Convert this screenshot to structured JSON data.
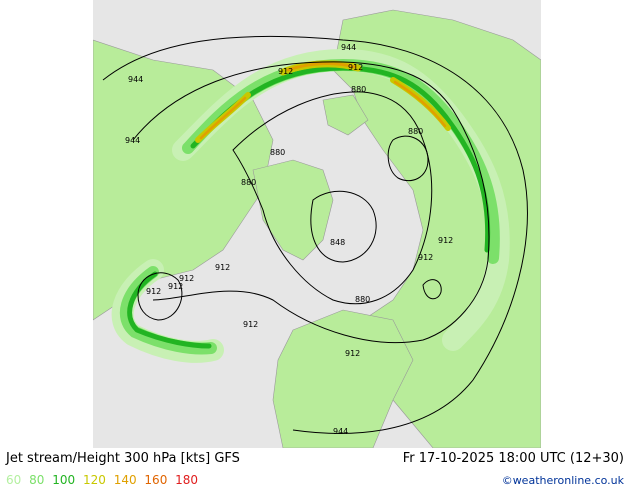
{
  "title": {
    "left": "Jet stream/Height 300 hPa [kts] GFS",
    "right": "Fr 17-10-2025 18:00 UTC (12+30)"
  },
  "legend": {
    "values": [
      {
        "label": "60",
        "color": "#b4f0a0"
      },
      {
        "label": "80",
        "color": "#7ce06a"
      },
      {
        "label": "100",
        "color": "#22b422"
      },
      {
        "label": "120",
        "color": "#c8c800"
      },
      {
        "label": "140",
        "color": "#e0a000"
      },
      {
        "label": "160",
        "color": "#e06400"
      },
      {
        "label": "180",
        "color": "#e01e1e"
      }
    ]
  },
  "credit": "©weatheronline.co.uk",
  "contour_labels": [
    {
      "text": "944"
    },
    {
      "text": "944"
    },
    {
      "text": "944"
    },
    {
      "text": "912"
    },
    {
      "text": "912"
    },
    {
      "text": "880"
    },
    {
      "text": "880"
    },
    {
      "text": "880"
    },
    {
      "text": "880"
    },
    {
      "text": "848"
    },
    {
      "text": "912"
    },
    {
      "text": "912"
    },
    {
      "text": "912"
    },
    {
      "text": "912"
    },
    {
      "text": "912"
    },
    {
      "text": "912"
    },
    {
      "text": "880"
    },
    {
      "text": "912"
    },
    {
      "text": "912"
    },
    {
      "text": "944"
    }
  ],
  "colors": {
    "ocean": "#e6e6e6",
    "land": "#b8ec9a",
    "border": "#a0a0a0",
    "jet_60": "#c8f0b4",
    "jet_80": "#7ce06a",
    "jet_100": "#22b422",
    "jet_120": "#c8c800",
    "jet_140": "#e0a000"
  }
}
